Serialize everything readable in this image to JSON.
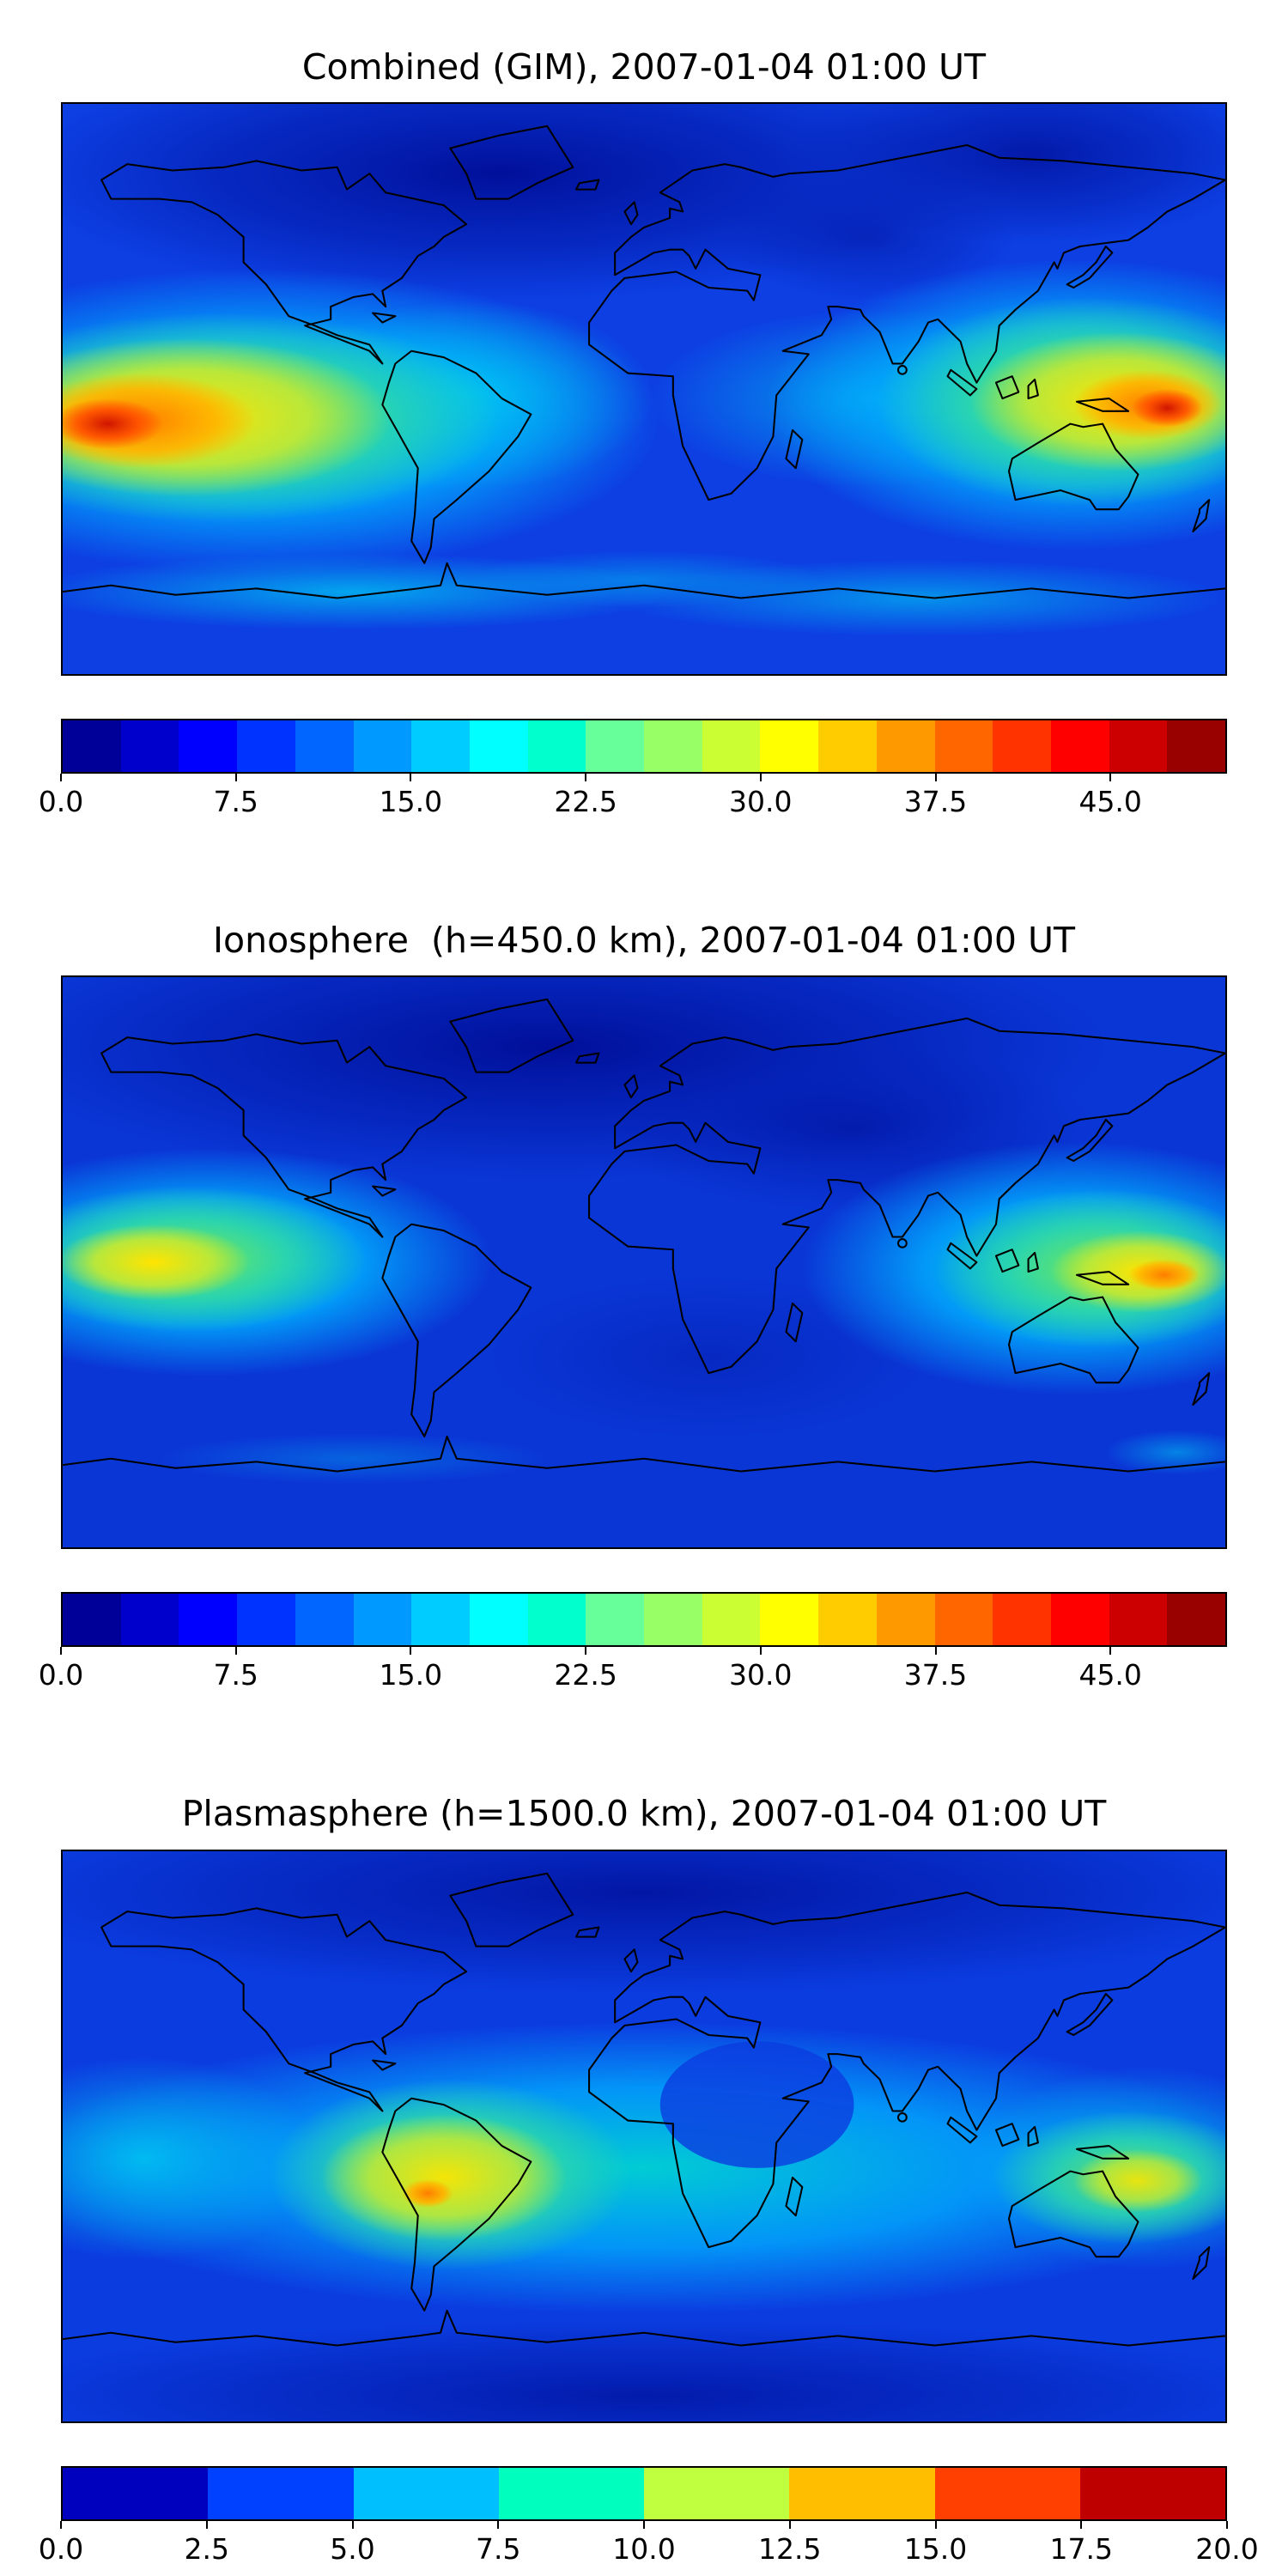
{
  "figure": {
    "background": "#ffffff",
    "colormap": "jet",
    "description_timestamp": "2007-01-04 01:00 UT"
  },
  "panels": [
    {
      "title": "Combined (GIM), 2007-01-04 01:00 UT",
      "colorbar": {
        "vmin": 0,
        "vmax": 50,
        "colors": [
          "#000099",
          "#0000CC",
          "#0000FF",
          "#0033FF",
          "#0066FF",
          "#0099FF",
          "#00CCFF",
          "#00FFFF",
          "#00FFCC",
          "#66FF99",
          "#99FF66",
          "#CCFF33",
          "#FFFF00",
          "#FFCC00",
          "#FF9900",
          "#FF6600",
          "#FF3300",
          "#FF0000",
          "#CC0000",
          "#990000"
        ],
        "ticks": [
          {
            "label": "0.0",
            "pos": 0.0
          },
          {
            "label": "7.5",
            "pos": 0.15
          },
          {
            "label": "15.0",
            "pos": 0.3
          },
          {
            "label": "22.5",
            "pos": 0.45
          },
          {
            "label": "30.0",
            "pos": 0.6
          },
          {
            "label": "37.5",
            "pos": 0.75
          },
          {
            "label": "45.0",
            "pos": 0.9
          }
        ]
      }
    },
    {
      "title": "Ionosphere  (h=450.0 km), 2007-01-04 01:00 UT",
      "colorbar": {
        "vmin": 0,
        "vmax": 50,
        "colors": [
          "#000099",
          "#0000CC",
          "#0000FF",
          "#0033FF",
          "#0066FF",
          "#0099FF",
          "#00CCFF",
          "#00FFFF",
          "#00FFCC",
          "#66FF99",
          "#99FF66",
          "#CCFF33",
          "#FFFF00",
          "#FFCC00",
          "#FF9900",
          "#FF6600",
          "#FF3300",
          "#FF0000",
          "#CC0000",
          "#990000"
        ],
        "ticks": [
          {
            "label": "0.0",
            "pos": 0.0
          },
          {
            "label": "7.5",
            "pos": 0.15
          },
          {
            "label": "15.0",
            "pos": 0.3
          },
          {
            "label": "22.5",
            "pos": 0.45
          },
          {
            "label": "30.0",
            "pos": 0.6
          },
          {
            "label": "37.5",
            "pos": 0.75
          },
          {
            "label": "45.0",
            "pos": 0.9
          }
        ]
      }
    },
    {
      "title": "Plasmasphere (h=1500.0 km), 2007-01-04 01:00 UT",
      "colorbar": {
        "vmin": 0,
        "vmax": 20,
        "colors": [
          "#0000BF",
          "#0040FF",
          "#00BFFF",
          "#00FFBF",
          "#BFFF40",
          "#FFBF00",
          "#FF4000",
          "#BF0000"
        ],
        "ticks": [
          {
            "label": "0.0",
            "pos": 0.0
          },
          {
            "label": "2.5",
            "pos": 0.125
          },
          {
            "label": "5.0",
            "pos": 0.25
          },
          {
            "label": "7.5",
            "pos": 0.375
          },
          {
            "label": "10.0",
            "pos": 0.5
          },
          {
            "label": "12.5",
            "pos": 0.625
          },
          {
            "label": "15.0",
            "pos": 0.75
          },
          {
            "label": "17.5",
            "pos": 0.875
          },
          {
            "label": "20.0",
            "pos": 1.0
          }
        ]
      }
    }
  ],
  "chart_data": [
    {
      "type": "heatmap",
      "title": "Combined (GIM), 2007-01-04 01:00 UT",
      "colormap": "jet",
      "projection": "equirectangular",
      "lon_range": [
        -180,
        180
      ],
      "lat_range": [
        -90,
        90
      ],
      "value_range": [
        0,
        50
      ],
      "colorbar_ticks": [
        0.0,
        7.5,
        15.0,
        22.5,
        30.0,
        37.5,
        45.0
      ],
      "grid_lons": [
        -180,
        -120,
        -60,
        0,
        60,
        120,
        180
      ],
      "grid_lats": [
        90,
        60,
        30,
        0,
        -30,
        -60,
        -90
      ],
      "approx_values": [
        [
          4,
          4,
          4,
          4,
          4,
          4,
          4
        ],
        [
          6,
          5,
          4,
          4,
          5,
          7,
          6
        ],
        [
          10,
          8,
          6,
          5,
          8,
          14,
          12
        ],
        [
          38,
          30,
          18,
          12,
          14,
          26,
          36
        ],
        [
          28,
          22,
          14,
          10,
          12,
          30,
          26
        ],
        [
          14,
          12,
          10,
          12,
          14,
          16,
          14
        ],
        [
          8,
          8,
          8,
          8,
          8,
          8,
          8
        ]
      ],
      "peaks": [
        {
          "lon": -162,
          "lat": -10,
          "value": 48
        },
        {
          "lon": 162,
          "lat": -6,
          "value": 46
        }
      ]
    },
    {
      "type": "heatmap",
      "title": "Ionosphere  (h=450.0 km), 2007-01-04 01:00 UT",
      "colormap": "jet",
      "projection": "equirectangular",
      "lon_range": [
        -180,
        180
      ],
      "lat_range": [
        -90,
        90
      ],
      "value_range": [
        0,
        50
      ],
      "colorbar_ticks": [
        0.0,
        7.5,
        15.0,
        22.5,
        30.0,
        37.5,
        45.0
      ],
      "grid_lons": [
        -180,
        -120,
        -60,
        0,
        60,
        120,
        180
      ],
      "grid_lats": [
        90,
        60,
        30,
        0,
        -30,
        -60,
        -90
      ],
      "approx_values": [
        [
          3,
          3,
          3,
          3,
          3,
          3,
          3
        ],
        [
          4,
          3,
          3,
          3,
          3,
          5,
          4
        ],
        [
          6,
          5,
          4,
          4,
          5,
          9,
          8
        ],
        [
          26,
          20,
          12,
          8,
          9,
          18,
          26
        ],
        [
          20,
          15,
          9,
          6,
          8,
          22,
          20
        ],
        [
          8,
          7,
          6,
          7,
          8,
          9,
          8
        ],
        [
          5,
          5,
          5,
          5,
          5,
          5,
          5
        ]
      ],
      "peaks": [
        {
          "lon": -158,
          "lat": 0,
          "value": 30
        },
        {
          "lon": 160,
          "lat": -3,
          "value": 34
        }
      ]
    },
    {
      "type": "heatmap",
      "title": "Plasmasphere (h=1500.0 km), 2007-01-04 01:00 UT",
      "colormap": "jet",
      "projection": "equirectangular",
      "lon_range": [
        -180,
        180
      ],
      "lat_range": [
        -90,
        90
      ],
      "value_range": [
        0,
        20
      ],
      "colorbar_ticks": [
        0.0,
        2.5,
        5.0,
        7.5,
        10.0,
        12.5,
        15.0,
        17.5,
        20.0
      ],
      "grid_lons": [
        -180,
        -120,
        -60,
        0,
        60,
        120,
        180
      ],
      "grid_lats": [
        90,
        60,
        30,
        0,
        -30,
        -60,
        -90
      ],
      "approx_values": [
        [
          2,
          2,
          2,
          2,
          2,
          2,
          2
        ],
        [
          3,
          3,
          3,
          3,
          3,
          3,
          3
        ],
        [
          6,
          6,
          6,
          5,
          6,
          7,
          6
        ],
        [
          8,
          9,
          12,
          7,
          6,
          9,
          8
        ],
        [
          7,
          9,
          13,
          8,
          7,
          10,
          8
        ],
        [
          4,
          4,
          5,
          4,
          4,
          5,
          4
        ],
        [
          2,
          2,
          2,
          2,
          2,
          2,
          2
        ]
      ],
      "peaks": [
        {
          "lon": -65,
          "lat": -18,
          "value": 16
        },
        {
          "lon": 153,
          "lat": -14,
          "value": 12
        }
      ]
    }
  ]
}
